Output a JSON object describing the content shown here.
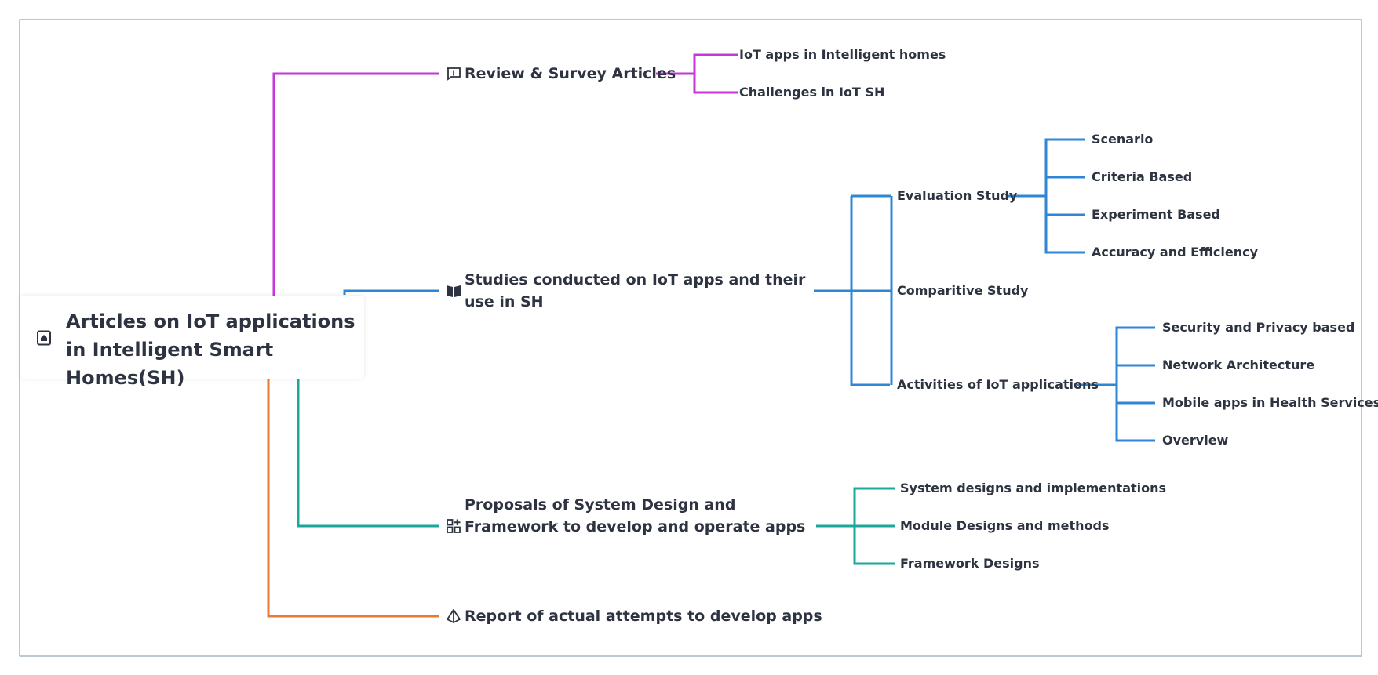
{
  "root": {
    "label": "Articles on IoT applications in Intelligent Smart Homes(SH)",
    "icon": "home-icon"
  },
  "branches": [
    {
      "label": "Review & Survey Articles",
      "icon": "report-icon",
      "color": "#c537d6",
      "children": [
        {
          "label": "IoT apps in Intelligent homes"
        },
        {
          "label": "Challenges in IoT SH"
        }
      ]
    },
    {
      "label": "Studies conducted on IoT apps and their use in SH",
      "icon": "book-icon",
      "color": "#2f85d6",
      "children": [
        {
          "label": "Evaluation Study",
          "children": [
            "Scenario",
            "Criteria Based",
            "Experiment Based",
            "Accuracy and Efficiency"
          ]
        },
        {
          "label": "Comparitive Study"
        },
        {
          "label": "Activities of IoT applications",
          "children": [
            "Security and Privacy based",
            "Network Architecture",
            "Mobile apps in Health Services",
            "Overview"
          ]
        }
      ]
    },
    {
      "label": "Proposals of System Design and Framework to develop and operate apps",
      "icon": "grid-icon",
      "color": "#1aa89b",
      "children": [
        {
          "label": "System designs and implementations"
        },
        {
          "label": "Module Designs and methods"
        },
        {
          "label": "Framework Designs"
        }
      ]
    },
    {
      "label": "Report of actual attempts to develop apps",
      "icon": "pyramid-icon",
      "color": "#e87a35"
    }
  ]
}
